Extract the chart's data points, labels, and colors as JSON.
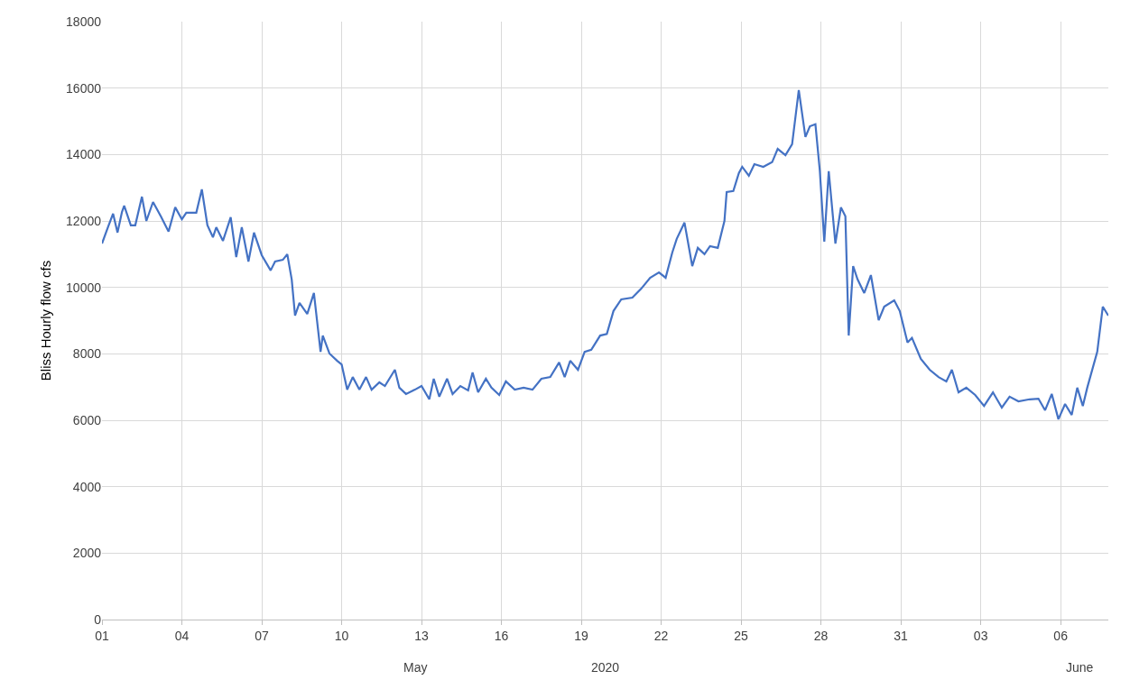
{
  "chart_data": {
    "type": "line",
    "ylabel": "Bliss Hourly flow cfs",
    "x": [
      "2020-05-01T00:00",
      "2020-05-01T06:00",
      "2020-05-01T10:00",
      "2020-05-01T14:00",
      "2020-05-01T18:00",
      "2020-05-01T20:00",
      "2020-05-02T02:00",
      "2020-05-02T06:00",
      "2020-05-02T12:00",
      "2020-05-02T16:00",
      "2020-05-02T22:00",
      "2020-05-03T05:00",
      "2020-05-03T12:00",
      "2020-05-03T18:00",
      "2020-05-04T00:00",
      "2020-05-04T04:00",
      "2020-05-04T13:00",
      "2020-05-04T18:00",
      "2020-05-04T23:00",
      "2020-05-05T04:00",
      "2020-05-05T07:00",
      "2020-05-05T13:00",
      "2020-05-05T20:00",
      "2020-05-06T01:00",
      "2020-05-06T06:00",
      "2020-05-06T12:00",
      "2020-05-06T17:00",
      "2020-05-07T00:00",
      "2020-05-07T08:00",
      "2020-05-07T12:00",
      "2020-05-07T19:00",
      "2020-05-07T23:00",
      "2020-05-08T03:00",
      "2020-05-08T06:00",
      "2020-05-08T10:00",
      "2020-05-08T17:00",
      "2020-05-08T23:00",
      "2020-05-09T05:00",
      "2020-05-09T07:00",
      "2020-05-09T13:00",
      "2020-05-09T20:00",
      "2020-05-10T00:00",
      "2020-05-10T05:00",
      "2020-05-10T10:00",
      "2020-05-10T16:00",
      "2020-05-10T22:00",
      "2020-05-11T03:00",
      "2020-05-11T10:00",
      "2020-05-11T15:00",
      "2020-05-12T00:00",
      "2020-05-12T04:00",
      "2020-05-12T10:00",
      "2020-05-12T18:00",
      "2020-05-13T00:00",
      "2020-05-13T07:00",
      "2020-05-13T11:00",
      "2020-05-13T16:00",
      "2020-05-13T23:00",
      "2020-05-14T04:00",
      "2020-05-14T11:00",
      "2020-05-14T18:00",
      "2020-05-14T22:00",
      "2020-05-15T03:00",
      "2020-05-15T10:00",
      "2020-05-15T15:00",
      "2020-05-15T22:00",
      "2020-05-16T04:00",
      "2020-05-16T12:00",
      "2020-05-16T20:00",
      "2020-05-17T04:00",
      "2020-05-17T12:00",
      "2020-05-17T20:00",
      "2020-05-18T04:00",
      "2020-05-18T09:00",
      "2020-05-18T14:00",
      "2020-05-18T21:00",
      "2020-05-19T03:00",
      "2020-05-19T09:00",
      "2020-05-19T17:00",
      "2020-05-19T23:00",
      "2020-05-20T05:00",
      "2020-05-20T12:00",
      "2020-05-20T22:00",
      "2020-05-21T06:00",
      "2020-05-21T14:00",
      "2020-05-21T22:00",
      "2020-05-22T04:00",
      "2020-05-22T10:00",
      "2020-05-22T14:00",
      "2020-05-22T21:00",
      "2020-05-23T04:00",
      "2020-05-23T09:00",
      "2020-05-23T15:00",
      "2020-05-23T20:00",
      "2020-05-24T03:00",
      "2020-05-24T09:00",
      "2020-05-24T11:00",
      "2020-05-24T17:00",
      "2020-05-24T22:00",
      "2020-05-25T01:00",
      "2020-05-25T07:00",
      "2020-05-25T12:00",
      "2020-05-25T20:00",
      "2020-05-26T04:00",
      "2020-05-26T09:00",
      "2020-05-26T16:00",
      "2020-05-26T22:00",
      "2020-05-27T04:00",
      "2020-05-27T10:00",
      "2020-05-27T14:00",
      "2020-05-27T19:00",
      "2020-05-27T23:00",
      "2020-05-28T03:00",
      "2020-05-28T07:00",
      "2020-05-28T13:00",
      "2020-05-28T18:00",
      "2020-05-28T22:00",
      "2020-05-29T01:00",
      "2020-05-29T05:00",
      "2020-05-29T09:00",
      "2020-05-29T15:00",
      "2020-05-29T21:00",
      "2020-05-30T04:00",
      "2020-05-30T09:00",
      "2020-05-30T18:00",
      "2020-05-30T23:00",
      "2020-05-31T06:00",
      "2020-05-31T10:00",
      "2020-05-31T18:00",
      "2020-06-01T02:00",
      "2020-06-01T10:00",
      "2020-06-01T17:00",
      "2020-06-01T22:00",
      "2020-06-02T04:00",
      "2020-06-02T11:00",
      "2020-06-02T19:00",
      "2020-06-03T03:00",
      "2020-06-03T11:00",
      "2020-06-03T19:00",
      "2020-06-04T02:00",
      "2020-06-04T10:00",
      "2020-06-04T20:00",
      "2020-06-05T04:00",
      "2020-06-05T10:00",
      "2020-06-05T16:00",
      "2020-06-05T22:00",
      "2020-06-06T04:00",
      "2020-06-06T10:00",
      "2020-06-06T15:00",
      "2020-06-06T20:00",
      "2020-06-07T00:00",
      "2020-06-07T09:00",
      "2020-06-07T14:00",
      "2020-06-07T19:00"
    ],
    "series": [
      {
        "color": "#4472c4",
        "values": [
          11320,
          11870,
          12220,
          11650,
          12270,
          12460,
          11870,
          11870,
          12730,
          12000,
          12570,
          12140,
          11680,
          12410,
          12050,
          12250,
          12250,
          12950,
          11870,
          11510,
          11810,
          11400,
          12110,
          10910,
          11810,
          10780,
          11650,
          10970,
          10510,
          10780,
          10830,
          11000,
          10240,
          9150,
          9530,
          9200,
          9830,
          8060,
          8550,
          8010,
          7790,
          7680,
          6920,
          7300,
          6920,
          7300,
          6920,
          7140,
          7030,
          7520,
          6980,
          6790,
          6920,
          7030,
          6630,
          7250,
          6710,
          7250,
          6790,
          7030,
          6900,
          7440,
          6840,
          7250,
          6980,
          6760,
          7170,
          6920,
          6980,
          6920,
          7250,
          7300,
          7740,
          7300,
          7790,
          7520,
          8060,
          8120,
          8550,
          8600,
          9290,
          9640,
          9690,
          9960,
          10290,
          10450,
          10290,
          11050,
          11460,
          11950,
          10640,
          11190,
          11000,
          11240,
          11190,
          12000,
          12870,
          12900,
          13440,
          13630,
          13360,
          13710,
          13630,
          13770,
          14170,
          13980,
          14310,
          15940,
          14530,
          14850,
          14910,
          13500,
          11380,
          13500,
          11320,
          12410,
          12140,
          8550,
          10640,
          10240,
          9830,
          10370,
          9010,
          9420,
          9610,
          9290,
          8340,
          8480,
          7850,
          7520,
          7300,
          7170,
          7520,
          6840,
          6980,
          6760,
          6430,
          6840,
          6380,
          6710,
          6570,
          6630,
          6650,
          6300,
          6790,
          6030,
          6490,
          6160,
          6980,
          6430,
          6980,
          8060,
          9420,
          9150
        ]
      }
    ],
    "xlim": [
      "2020-05-01",
      "2020-06-07T19:00"
    ],
    "xticks": [
      {
        "value": "2020-05-01",
        "label": "01"
      },
      {
        "value": "2020-05-04",
        "label": "04"
      },
      {
        "value": "2020-05-07",
        "label": "07"
      },
      {
        "value": "2020-05-10",
        "label": "10"
      },
      {
        "value": "2020-05-13",
        "label": "13"
      },
      {
        "value": "2020-05-16",
        "label": "16"
      },
      {
        "value": "2020-05-19",
        "label": "19"
      },
      {
        "value": "2020-05-22",
        "label": "22"
      },
      {
        "value": "2020-05-25",
        "label": "25"
      },
      {
        "value": "2020-05-28",
        "label": "28"
      },
      {
        "value": "2020-05-31",
        "label": "31"
      },
      {
        "value": "2020-06-03",
        "label": "03"
      },
      {
        "value": "2020-06-06",
        "label": "06"
      }
    ],
    "ylim": [
      0,
      18000
    ],
    "yticks": [
      0,
      2000,
      4000,
      6000,
      8000,
      10000,
      12000,
      14000,
      16000,
      18000
    ],
    "annotations": [
      "May",
      "2020",
      "June"
    ],
    "grid": true,
    "marker": "none",
    "line_style": "solid"
  }
}
